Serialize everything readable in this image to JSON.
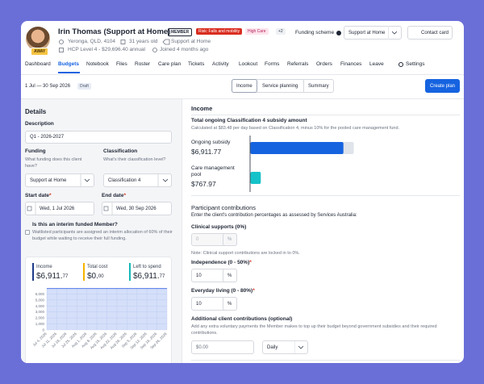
{
  "member": {
    "name": "Irin Thomas (Support at Home)",
    "avatar_badge": "AWAY",
    "badges": [
      "MEMBER",
      "Risk: Falls and mobility",
      "High Care",
      "+2"
    ],
    "location": "Yeronga, QLD, 4104",
    "age": "31 years old",
    "program": "Support at Home",
    "package": "HCP Level 4 - $29,696.40 annual",
    "joined": "Joined 4 months ago"
  },
  "header_actions": {
    "funding_label": "Funding scheme",
    "funding_value": "Support at Home",
    "contact": "Contact card"
  },
  "nav": {
    "items": [
      "Dashboard",
      "Budgets",
      "Notebook",
      "Files",
      "Roster",
      "Care plan",
      "Tickets",
      "Activity",
      "Lookout",
      "Forms",
      "Referrals",
      "Orders",
      "Finances",
      "Leave",
      "Settings"
    ],
    "active": 1
  },
  "budget_bar": {
    "period": "1 Jul — 30 Sep 2026",
    "status": "Draft",
    "tabs": [
      "Income",
      "Service planning",
      "Summary"
    ],
    "create": "Create plan"
  },
  "required_mark": "*",
  "details": {
    "title": "Details",
    "description_label": "Description",
    "description": "Q1 - 2026-2027",
    "funding_label": "Funding",
    "funding_help": "What funding does this client have?",
    "funding_value": "Support at Home",
    "classification_label": "Classification",
    "classification_help": "What's their classification level?",
    "classification_value": "Classification 4",
    "start_label": "Start date",
    "start_value": "Wed, 1 Jul 2026",
    "end_label": "End date",
    "end_value": "Wed, 30 Sep 2026",
    "interim_question": "Is this an interim funded Member?",
    "interim_help": "Waitlisted participants are assigned an interim allocation of 60% of their budget while waiting to receive their full funding."
  },
  "budget_chart": {
    "type": "area",
    "stats": [
      {
        "label": "Income",
        "amount": "$6,911.",
        "cents": "77",
        "color": "#1e3a8a"
      },
      {
        "label": "Total cost",
        "amount": "$0.",
        "cents": "00",
        "color": "#f5b400"
      },
      {
        "label": "Left to spend",
        "amount": "$6,911.",
        "cents": "77",
        "color": "#14b8b8"
      }
    ],
    "categories": [
      "Jul 4, 2026",
      "Jul 11, 2026",
      "Jul 18, 2026",
      "Jul 25, 2026",
      "Aug 1, 2026",
      "Aug 8, 2026",
      "Aug 15, 2026",
      "Aug 22, 2026",
      "Aug 29, 2026",
      "Sep 5, 2026",
      "Sep 12, 2026",
      "Sep 19, 2026",
      "Sep 26, 2026"
    ],
    "values": [
      6911.77,
      6911.77,
      6911.77,
      6911.77,
      6911.77,
      6911.77,
      6911.77,
      6911.77,
      6911.77,
      6911.77,
      6911.77,
      6911.77,
      6911.77
    ],
    "color": "#4f7be8",
    "ylim": [
      0,
      7000
    ],
    "yticks": [
      0,
      {
        "value": 1000,
        "label": "1,000"
      },
      {
        "value": 2000,
        "label": "2,000"
      },
      {
        "value": 3000,
        "label": "3,000"
      },
      {
        "value": 4000,
        "label": "4,000"
      },
      {
        "value": 5000,
        "label": "5,000"
      },
      {
        "value": 6000,
        "label": "6,000"
      }
    ]
  },
  "income": {
    "title": "Income",
    "subtitle": "Total ongoing Classification 4 subsidy amount",
    "note": "Calculated at $83.48 per day based on Classification 4, minus 10% for the pooled care management fund.",
    "bars": [
      {
        "name": "Ongoing subsidy",
        "value": 6911.77,
        "label": "$6,911.77",
        "color": "#1663e0"
      },
      {
        "name": "Care management pool",
        "value": 767.97,
        "label": "$767.97",
        "color": "#16c2c9"
      }
    ]
  },
  "contributions": {
    "title": "Participant contributions",
    "intro": "Enter the client's contribution percentages as assessed by Services Australia:",
    "unit": "%",
    "clinical_label": "Clinical supports (0%)",
    "clinical_value": "0",
    "clinical_note": "Note: Clinical support contributions are locked in to 0%.",
    "independence_label": "Independence (0 - 50%)",
    "independence_value": "10",
    "everyday_label": "Everyday living (0 - 80%)",
    "everyday_value": "10",
    "additional_label": "Additional client contributions (optional)",
    "additional_help": "Add any extra voluntary payments the Member makes to top up their budget beyond government subsidies and their required contributions.",
    "additional_value": "$0.00",
    "frequency": "Daily"
  }
}
